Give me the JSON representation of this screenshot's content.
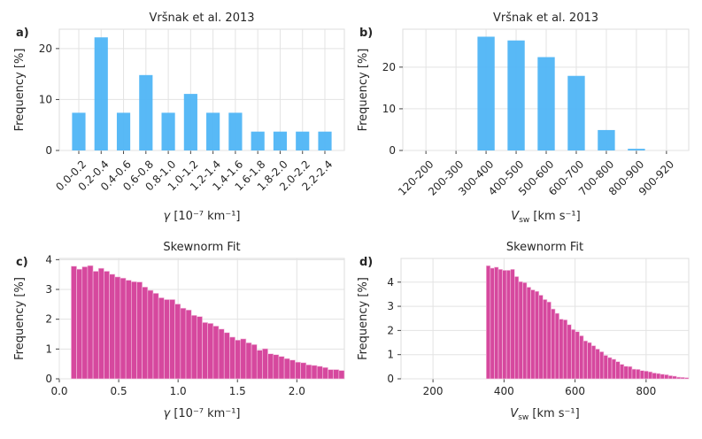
{
  "chart_data": [
    {
      "panel": "a)",
      "type": "bar",
      "title": "Vršnak et al. 2013",
      "xlabel": "γ [10⁻⁷ km⁻¹]",
      "ylabel": "Frequency [%]",
      "categories": [
        "0.0-0.2",
        "0.2-0.4",
        "0.4-0.6",
        "0.6-0.8",
        "0.8-1.0",
        "1.0-1.2",
        "1.2-1.4",
        "1.4-1.6",
        "1.6-1.8",
        "1.8-2.0",
        "2.0-2.2",
        "2.2-2.4"
      ],
      "values": [
        7.4,
        22.2,
        7.4,
        14.8,
        7.4,
        11.1,
        7.4,
        7.4,
        3.7,
        3.7,
        3.7,
        3.7
      ],
      "ylim": [
        0,
        23.8
      ],
      "yticks": [
        0,
        10,
        20
      ],
      "color": "#4fb5f5",
      "grid": true
    },
    {
      "panel": "b)",
      "type": "bar",
      "title": "Vršnak et al. 2013",
      "xlabel": "V_sw [km s⁻¹]",
      "ylabel": "Frequency [%]",
      "categories": [
        "120-200",
        "200-300",
        "300-400",
        "400-500",
        "500-600",
        "600-700",
        "700-800",
        "800-900",
        "900-920"
      ],
      "values": [
        0,
        0,
        27.3,
        26.4,
        22.4,
        17.9,
        4.9,
        0.4,
        0
      ],
      "ylim": [
        0,
        29.1
      ],
      "yticks": [
        0,
        10,
        20
      ],
      "color": "#4fb5f5",
      "grid": true
    },
    {
      "panel": "c)",
      "type": "bar",
      "title": "Skewnorm Fit",
      "xlabel": "γ [10⁻⁷ km⁻¹]",
      "ylabel": "Frequency [%]",
      "bin_start": 0.1,
      "bin_end": 2.4,
      "values": [
        3.78,
        3.68,
        3.76,
        3.8,
        3.61,
        3.71,
        3.61,
        3.51,
        3.42,
        3.38,
        3.31,
        3.26,
        3.25,
        3.08,
        2.97,
        2.87,
        2.72,
        2.66,
        2.66,
        2.51,
        2.37,
        2.31,
        2.13,
        2.09,
        1.89,
        1.86,
        1.77,
        1.67,
        1.55,
        1.4,
        1.3,
        1.34,
        1.21,
        1.15,
        0.96,
        1.01,
        0.84,
        0.81,
        0.75,
        0.68,
        0.63,
        0.56,
        0.54,
        0.47,
        0.45,
        0.42,
        0.38,
        0.31,
        0.31,
        0.28
      ],
      "xlim": [
        0,
        2.4
      ],
      "ylim": [
        0,
        4.04
      ],
      "xticks": [
        0.0,
        0.5,
        1.0,
        1.5,
        2.0
      ],
      "xticklabels": [
        "0.0",
        "0.5",
        "1.0",
        "1.5",
        "2.0"
      ],
      "yticks": [
        0,
        1,
        2,
        3,
        4
      ],
      "color": "#d6489e",
      "grid": true
    },
    {
      "panel": "d)",
      "type": "bar",
      "title": "Skewnorm Fit",
      "xlabel": "V_sw [km s⁻¹]",
      "ylabel": "Frequency [%]",
      "bin_start": 350,
      "bin_end": 920,
      "values": [
        4.68,
        4.58,
        4.62,
        4.53,
        4.49,
        4.49,
        4.53,
        4.23,
        4.02,
        3.98,
        3.79,
        3.68,
        3.62,
        3.46,
        3.28,
        3.18,
        2.89,
        2.71,
        2.47,
        2.44,
        2.24,
        2.04,
        1.95,
        1.78,
        1.57,
        1.5,
        1.37,
        1.23,
        1.12,
        0.97,
        0.88,
        0.81,
        0.71,
        0.6,
        0.52,
        0.51,
        0.4,
        0.39,
        0.34,
        0.32,
        0.29,
        0.24,
        0.22,
        0.19,
        0.17,
        0.13,
        0.11,
        0.07,
        0.06,
        0.05
      ],
      "xlim": [
        110,
        920
      ],
      "ylim": [
        0,
        4.98
      ],
      "xticks": [
        200,
        400,
        600,
        800
      ],
      "xticklabels": [
        "200",
        "400",
        "600",
        "800"
      ],
      "yticks": [
        0,
        1,
        2,
        3,
        4
      ],
      "color": "#d6489e",
      "grid": true
    }
  ]
}
